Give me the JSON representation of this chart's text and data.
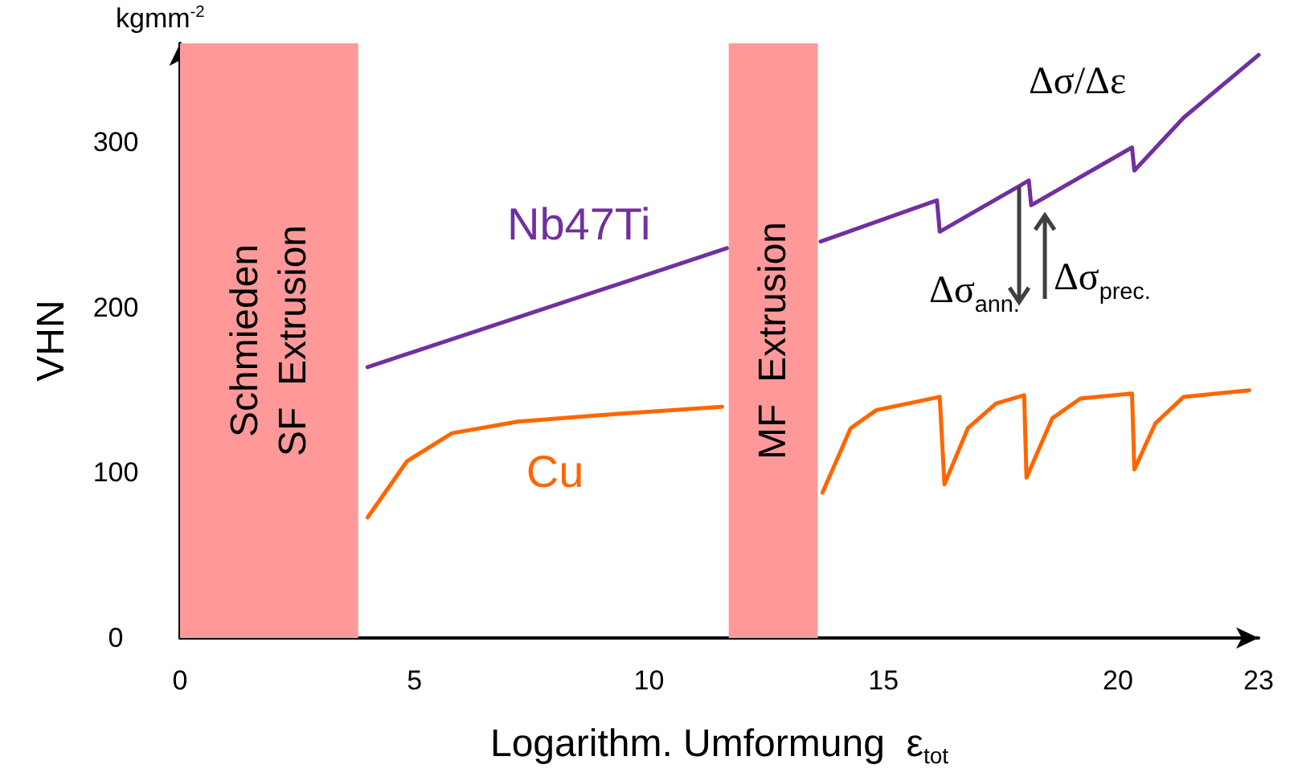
{
  "chart_data": {
    "type": "line",
    "xlabel": "Logarithm. Umformung  ε$_{tot}$",
    "ylabel": "VHN",
    "x": [
      4.0,
      11.66,
      null,
      13.66,
      16.14,
      16.2,
      18.1,
      18.15,
      20.3,
      20.35,
      21.4,
      23.0
    ],
    "series": [
      {
        "name": "Nb47Ti",
        "color": "#7030a0",
        "values": [
          164,
          236,
          null,
          240,
          265,
          246,
          277,
          262,
          297,
          283,
          315,
          353
        ]
      },
      {
        "name": "Cu",
        "color": "#ff6600",
        "x": [
          4.0,
          4.84,
          5.8,
          7.2,
          9.0,
          11.56,
          null,
          13.7,
          14.3,
          14.85,
          16.2,
          16.3,
          16.8,
          17.4,
          18.0,
          18.05,
          18.6,
          19.2,
          20.3,
          20.35,
          20.8,
          21.4,
          22.8
        ],
        "values": [
          73,
          107,
          124,
          131,
          135,
          140,
          null,
          88,
          127,
          138,
          146,
          93,
          127,
          142,
          147,
          97,
          133,
          145,
          148,
          102,
          130,
          146,
          150
        ]
      }
    ],
    "xlim": [
      0,
      23
    ],
    "xticks": [
      0,
      5,
      10,
      15,
      20,
      23
    ],
    "ylim": [
      0,
      360
    ],
    "yticks": [
      0,
      100,
      200,
      300
    ],
    "bands": [
      {
        "axis": "x",
        "from": 0,
        "to": 3.8,
        "label": "Schmieden\nSF  Extrusion",
        "color": "#ff9999"
      },
      {
        "axis": "x",
        "from": 11.7,
        "to": 13.6,
        "label": "MF  Extrusion",
        "color": "#ff9999"
      }
    ],
    "annotations": [
      "kgmm$^{-2}$",
      "Δσ/Δε",
      {
        "text": "Δσ$_{ann.}$",
        "x": 18.1,
        "y": 262
      },
      {
        "text": "Δσ$_{prec.}$",
        "x": 18.15,
        "y": 262
      }
    ],
    "marker": "none",
    "line_style": "solid",
    "grid": false,
    "legend": false
  }
}
